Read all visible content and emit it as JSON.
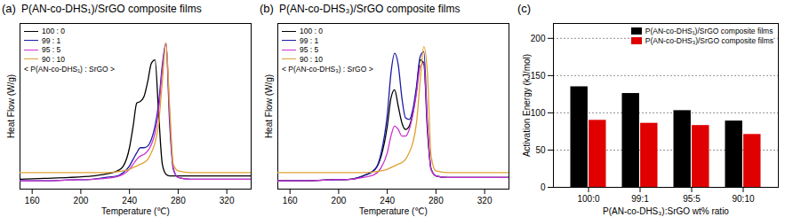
{
  "chart_data": [
    {
      "type": "line",
      "panel_label": "(a)",
      "title": "P(AN-co-DHS₁)/SrGO composite films",
      "x_label": "Temperature (℃)",
      "y_label": "Heat Flow (W/g)",
      "annotations": [
        "< P(AN-co-DHS₁) : SrGO >"
      ],
      "legend": "upper left",
      "tick_labels": "x",
      "xlim": [
        150,
        340
      ],
      "xticks": [
        160,
        200,
        240,
        280,
        320
      ],
      "ylim": [
        0,
        10
      ],
      "x": [
        150,
        170,
        190,
        210,
        220,
        230,
        235,
        240,
        243,
        246,
        249,
        252,
        255,
        258,
        261,
        264,
        267,
        270,
        273,
        276,
        280,
        290,
        300,
        320,
        340
      ],
      "series": [
        {
          "name": "100 : 0",
          "color": "#000000",
          "values": [
            0.6,
            0.65,
            0.7,
            0.8,
            0.9,
            1.1,
            1.4,
            2.5,
            3.8,
            5.2,
            5.3,
            5.6,
            6.5,
            7.6,
            7.8,
            4.5,
            1.5,
            0.9,
            0.8,
            0.8,
            0.8,
            0.8,
            0.8,
            0.8,
            0.8
          ]
        },
        {
          "name": "99 : 1",
          "color": "#1a1aa6",
          "values": [
            0.5,
            0.5,
            0.55,
            0.6,
            0.7,
            0.8,
            1.0,
            1.4,
            1.8,
            2.2,
            2.5,
            2.5,
            2.6,
            3.0,
            3.8,
            5.2,
            7.5,
            8.8,
            4.0,
            1.2,
            0.7,
            0.6,
            0.6,
            0.6,
            0.6
          ]
        },
        {
          "name": "95 : 5",
          "color": "#cc33cc",
          "values": [
            0.5,
            0.5,
            0.55,
            0.6,
            0.65,
            0.75,
            0.9,
            1.2,
            1.5,
            1.8,
            2.0,
            2.1,
            2.3,
            2.7,
            3.4,
            4.8,
            7.2,
            8.8,
            4.5,
            1.3,
            0.7,
            0.6,
            0.6,
            0.6,
            0.6
          ]
        },
        {
          "name": "90 : 10",
          "color": "#e0a030",
          "values": [
            1.0,
            1.0,
            1.0,
            1.0,
            1.0,
            1.05,
            1.1,
            1.2,
            1.3,
            1.4,
            1.5,
            1.6,
            1.8,
            2.2,
            2.8,
            4.0,
            6.5,
            8.8,
            5.0,
            1.5,
            1.1,
            1.0,
            1.0,
            1.0,
            1.0
          ]
        }
      ]
    },
    {
      "type": "line",
      "panel_label": "(b)",
      "title": "P(AN-co-DHS₃)/SrGO composite films",
      "x_label": "Temperature (℃)",
      "y_label": "Heat Flow (W/g)",
      "annotations": [
        "< P(AN-co-DHS₃) : SrGO >"
      ],
      "legend": "upper left",
      "tick_labels": "x",
      "xlim": [
        150,
        340
      ],
      "xticks": [
        160,
        200,
        240,
        280,
        320
      ],
      "ylim": [
        0,
        10
      ],
      "x": [
        150,
        170,
        190,
        210,
        220,
        230,
        235,
        240,
        243,
        246,
        249,
        252,
        255,
        258,
        261,
        264,
        267,
        270,
        273,
        276,
        280,
        290,
        300,
        320,
        340
      ],
      "series": [
        {
          "name": "100 : 0",
          "color": "#000000",
          "values": [
            0.5,
            0.5,
            0.55,
            0.6,
            0.8,
            1.2,
            2.0,
            3.8,
            5.5,
            6.0,
            5.0,
            4.0,
            3.6,
            3.8,
            4.6,
            6.0,
            7.8,
            7.6,
            3.5,
            1.2,
            0.8,
            0.7,
            0.7,
            0.7,
            0.7
          ]
        },
        {
          "name": "99 : 1",
          "color": "#1a1aa6",
          "values": [
            0.5,
            0.5,
            0.55,
            0.6,
            0.8,
            1.2,
            2.2,
            4.5,
            7.0,
            8.2,
            7.5,
            5.5,
            4.3,
            4.2,
            4.8,
            6.2,
            8.0,
            8.3,
            4.0,
            1.2,
            0.8,
            0.7,
            0.7,
            0.7,
            0.7
          ]
        },
        {
          "name": "95 : 5",
          "color": "#cc33cc",
          "values": [
            0.5,
            0.5,
            0.55,
            0.6,
            0.7,
            0.9,
            1.3,
            2.2,
            3.2,
            3.8,
            3.6,
            3.2,
            3.2,
            3.6,
            4.5,
            5.8,
            7.4,
            7.6,
            3.8,
            1.2,
            0.8,
            0.7,
            0.7,
            0.7,
            0.7
          ]
        },
        {
          "name": "90 : 10",
          "color": "#e0a030",
          "values": [
            1.0,
            1.0,
            1.0,
            1.0,
            1.0,
            1.05,
            1.1,
            1.2,
            1.3,
            1.4,
            1.5,
            1.6,
            1.8,
            2.2,
            2.8,
            4.0,
            6.5,
            8.6,
            7.0,
            2.0,
            1.1,
            1.0,
            1.0,
            1.0,
            1.0
          ]
        }
      ]
    },
    {
      "type": "bar",
      "panel_label": "(c)",
      "x_label": "P(AN-co-DHS₃):SrGO wt% ratio",
      "y_label": "Activation Energy (kJ/mol)",
      "legend": "upper right",
      "grid": true,
      "categories": [
        "100:0",
        "99:1",
        "95:5",
        "90:10"
      ],
      "ylim": [
        0,
        220
      ],
      "yticks": [
        0,
        50,
        100,
        150,
        200
      ],
      "series": [
        {
          "name": "P(AN-co-DHS₁)/SrGO composite films",
          "color": "#000000",
          "values": [
            135,
            126,
            103,
            89
          ]
        },
        {
          "name": "P(AN-co-DHS₃)/SrGO composite films",
          "color": "#e00000",
          "values": [
            90,
            86,
            83,
            71
          ]
        }
      ]
    }
  ]
}
